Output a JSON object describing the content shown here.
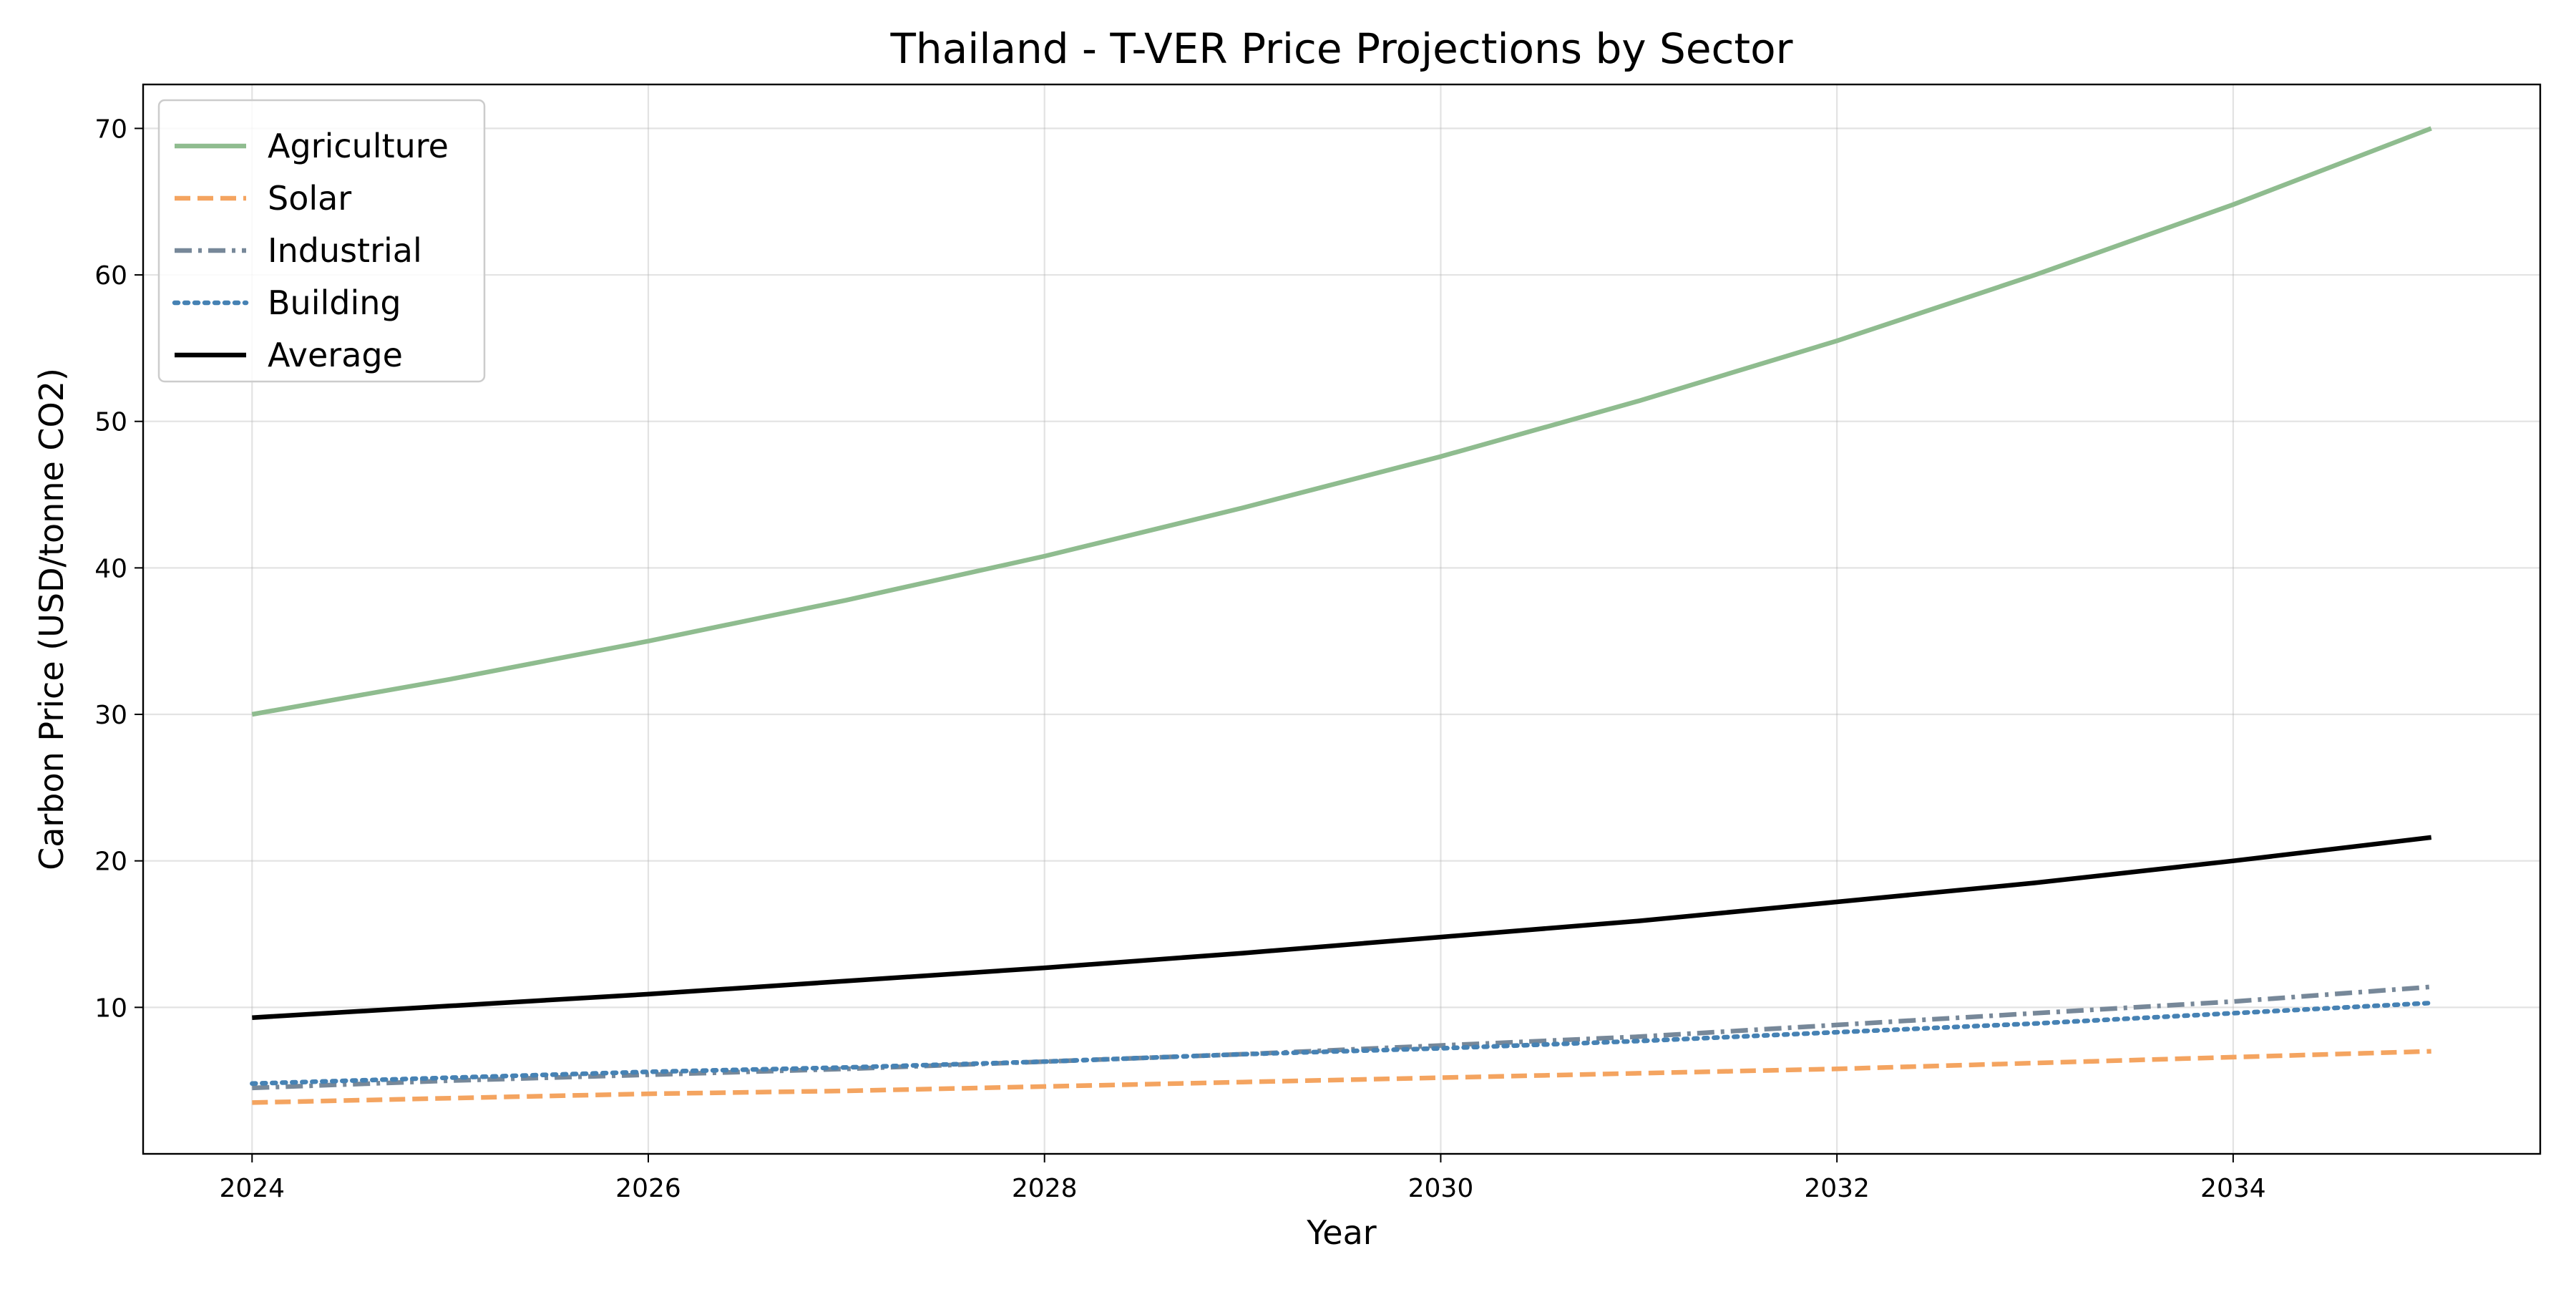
{
  "chart_data": {
    "type": "line",
    "title": "Thailand - T-VER Price Projections by Sector",
    "xlabel": "Year",
    "ylabel": "Carbon Price (USD/tonne CO2)",
    "xlim": [
      2023.45,
      2035.55
    ],
    "ylim": [
      0,
      73
    ],
    "xticks": [
      2024,
      2026,
      2028,
      2030,
      2032,
      2034
    ],
    "yticks": [
      10,
      20,
      30,
      40,
      50,
      60,
      70
    ],
    "grid": true,
    "legend_position": "top-left",
    "x": [
      2024,
      2025,
      2026,
      2027,
      2028,
      2029,
      2030,
      2031,
      2032,
      2033,
      2034,
      2035
    ],
    "series": [
      {
        "name": "Agriculture",
        "color": "#8fbc8f",
        "line_style": "solid",
        "values": [
          30.0,
          32.4,
          35.0,
          37.8,
          40.8,
          44.1,
          47.6,
          51.4,
          55.5,
          60.0,
          64.8,
          70.0
        ]
      },
      {
        "name": "Solar",
        "color": "#f4a460",
        "line_style": "dashed",
        "values": [
          3.5,
          3.8,
          4.1,
          4.3,
          4.6,
          4.9,
          5.2,
          5.5,
          5.8,
          6.2,
          6.6,
          7.0
        ]
      },
      {
        "name": "Industrial",
        "color": "#778899",
        "line_style": "dashdot",
        "values": [
          4.5,
          5.0,
          5.4,
          5.8,
          6.3,
          6.8,
          7.4,
          8.0,
          8.8,
          9.6,
          10.4,
          11.4
        ]
      },
      {
        "name": "Building",
        "color": "#4682b4",
        "line_style": "dotted",
        "values": [
          4.8,
          5.2,
          5.6,
          5.9,
          6.3,
          6.8,
          7.2,
          7.7,
          8.3,
          8.9,
          9.6,
          10.3
        ]
      },
      {
        "name": "Average",
        "color": "#000000",
        "line_style": "solid",
        "values": [
          9.3,
          10.1,
          10.9,
          11.8,
          12.7,
          13.7,
          14.8,
          15.9,
          17.2,
          18.5,
          20.0,
          21.6
        ]
      }
    ]
  }
}
